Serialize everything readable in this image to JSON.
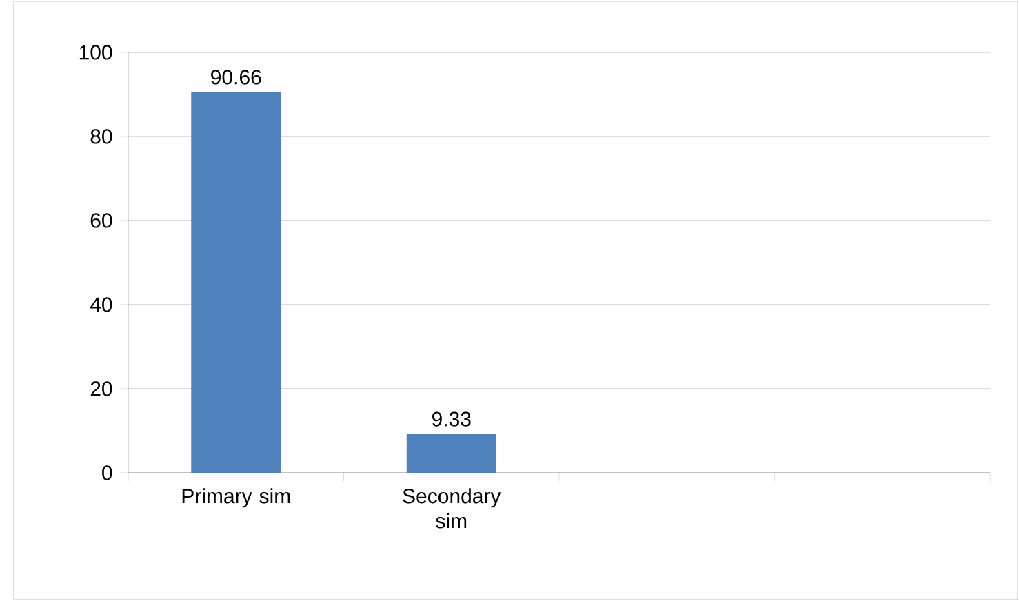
{
  "chart_data": {
    "type": "bar",
    "categories": [
      "Primary sim",
      "Secondary sim",
      null,
      null
    ],
    "values": [
      90.66,
      9.33,
      null,
      null
    ],
    "color": "#4f81bd",
    "ylim": [
      0,
      100
    ],
    "yticks": [
      0,
      20,
      40,
      60,
      80,
      100
    ],
    "grid": "y",
    "data_labels": true
  }
}
